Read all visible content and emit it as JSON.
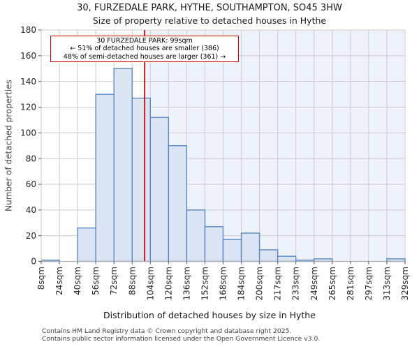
{
  "header": {
    "title": "30, FURZEDALE PARK, HYTHE, SOUTHAMPTON, SO45 3HW",
    "subtitle": "Size of property relative to detached houses in Hythe"
  },
  "annotation": {
    "line1": "30 FURZEDALE PARK: 99sqm",
    "line2": "← 51% of detached houses are smaller (386)",
    "line3": "48% of semi-detached houses are larger (361) →"
  },
  "chart_data": {
    "type": "bar",
    "title": "30, FURZEDALE PARK, HYTHE, SOUTHAMPTON, SO45 3HW",
    "subtitle": "Size of property relative to detached houses in Hythe",
    "xlabel": "Distribution of detached houses by size in Hythe",
    "ylabel": "Number of detached properties",
    "x_tick_values": [
      8,
      24,
      40,
      56,
      72,
      88,
      104,
      120,
      136,
      152,
      168,
      184,
      200,
      217,
      233,
      249,
      265,
      281,
      297,
      313,
      329
    ],
    "x_tick_labels": [
      "8sqm",
      "24sqm",
      "40sqm",
      "56sqm",
      "72sqm",
      "88sqm",
      "104sqm",
      "120sqm",
      "136sqm",
      "152sqm",
      "168sqm",
      "184sqm",
      "200sqm",
      "217sqm",
      "233sqm",
      "249sqm",
      "265sqm",
      "281sqm",
      "297sqm",
      "313sqm",
      "329sqm"
    ],
    "values": [
      1,
      0,
      26,
      130,
      150,
      127,
      112,
      90,
      40,
      27,
      17,
      22,
      9,
      4,
      1,
      2,
      0,
      0,
      0,
      2
    ],
    "y_ticks": [
      0,
      20,
      40,
      60,
      80,
      100,
      120,
      140,
      160,
      180
    ],
    "ylim": [
      0,
      180
    ],
    "grid": true,
    "marker_value_sqm": 99,
    "colors": {
      "marker_line": "#cc0000",
      "annotation_border": "#cc0000",
      "bar_fill": "#dbe5f3",
      "bar_stroke": "#5b87c5",
      "grid": "#cccccc",
      "shade_right_of_marker": "#eef2fa",
      "axis_spine": "#b0b0b0",
      "tick_text": "#262626"
    }
  },
  "footer": {
    "line1": "Contains HM Land Registry data © Crown copyright and database right 2025.",
    "line2": "Contains public sector information licensed under the Open Government Licence v3.0."
  }
}
